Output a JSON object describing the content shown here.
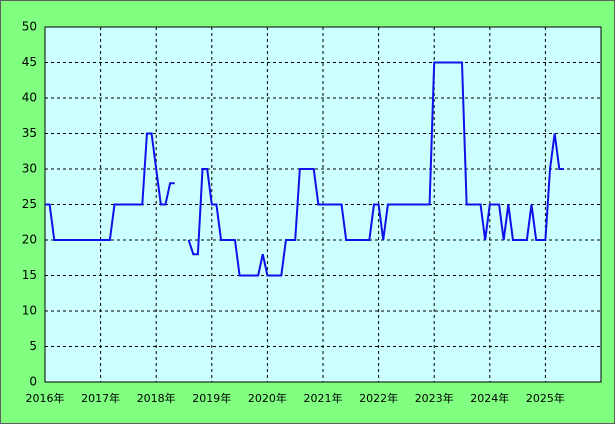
{
  "chart_data": {
    "type": "line",
    "x": [
      0,
      1,
      2,
      3,
      4,
      5,
      6,
      7,
      8,
      9,
      10,
      11,
      12,
      13,
      14,
      15,
      16,
      17,
      18,
      19,
      20,
      21,
      22,
      23,
      24,
      25,
      26,
      27,
      28,
      29,
      30,
      31,
      32,
      33,
      34,
      35,
      36,
      37,
      38,
      39,
      40,
      41,
      42,
      43,
      44,
      45,
      46,
      47,
      48,
      49,
      50,
      51,
      52,
      53,
      54,
      55,
      56,
      57,
      58,
      59,
      60,
      61,
      62,
      63,
      64,
      65,
      66,
      67,
      68,
      69,
      70,
      71,
      72,
      73,
      74,
      75,
      76,
      77,
      78,
      79,
      80,
      81,
      82,
      83,
      84,
      85,
      86,
      87,
      88,
      89,
      90,
      91,
      92,
      93,
      94,
      95,
      96,
      97,
      98,
      99,
      100,
      101,
      102,
      103,
      104,
      105,
      106,
      107,
      108,
      109,
      110,
      111,
      112
    ],
    "series": [
      {
        "color": "#1010e8",
        "values": [
          25,
          25,
          20,
          20,
          20,
          20,
          20,
          20,
          20,
          20,
          20,
          20,
          20,
          20,
          20,
          25,
          25,
          25,
          25,
          25,
          25,
          25,
          35,
          35,
          30,
          25,
          25,
          28,
          28,
          null,
          null,
          20,
          18,
          18,
          30,
          30,
          25,
          25,
          20,
          20,
          20,
          20,
          15,
          15,
          15,
          15,
          15,
          18,
          15,
          15,
          15,
          15,
          20,
          20,
          20,
          30,
          30,
          30,
          30,
          25,
          25,
          25,
          25,
          25,
          25,
          20,
          20,
          20,
          20,
          20,
          20,
          25,
          25,
          20,
          25,
          25,
          25,
          25,
          25,
          25,
          25,
          25,
          25,
          25,
          45,
          45,
          45,
          45,
          45,
          45,
          45,
          25,
          25,
          25,
          25,
          20,
          25,
          25,
          25,
          20,
          25,
          20,
          20,
          20,
          20,
          25,
          20,
          20,
          20,
          30,
          35,
          30,
          30
        ]
      }
    ],
    "xlim": [
      0,
      120
    ],
    "xticks": [
      {
        "value": 0,
        "label": "2016年"
      },
      {
        "value": 12,
        "label": "2017年"
      },
      {
        "value": 24,
        "label": "2018年"
      },
      {
        "value": 36,
        "label": "2019年"
      },
      {
        "value": 48,
        "label": "2020年"
      },
      {
        "value": 60,
        "label": "2021年"
      },
      {
        "value": 72,
        "label": "2022年"
      },
      {
        "value": 84,
        "label": "2023年"
      },
      {
        "value": 96,
        "label": "2024年"
      },
      {
        "value": 108,
        "label": "2025年"
      }
    ],
    "ylim": [
      0,
      50
    ],
    "yticks": [
      0,
      5,
      10,
      15,
      20,
      25,
      30,
      35,
      40,
      45,
      50
    ],
    "grid": true
  }
}
